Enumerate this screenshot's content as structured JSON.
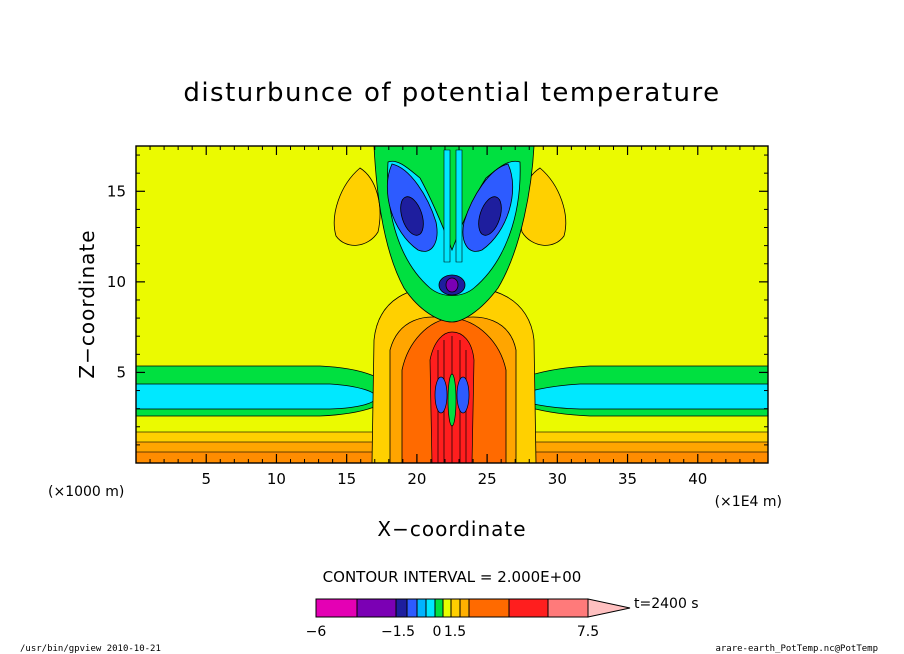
{
  "chart_data": {
    "type": "contour",
    "title": "disturbunce of potential temperature",
    "xlabel": "X−coordinate",
    "ylabel": "Z−coordinate",
    "x_unit": "(×1E4 m)",
    "y_unit": "(×1000 m)",
    "xlim": [
      0,
      45
    ],
    "ylim": [
      0,
      17.5
    ],
    "x_ticks": [
      5,
      10,
      15,
      20,
      25,
      30,
      35,
      40
    ],
    "y_ticks": [
      5,
      10,
      15
    ],
    "contour_interval_text": "CONTOUR INTERVAL = 2.000E+00",
    "colorbar": {
      "tick_labels": [
        "−6",
        "−1.5",
        "0",
        "1.5",
        "7.5"
      ],
      "colors": [
        "#e400b4",
        "#7b00b4",
        "#1e1e9e",
        "#2d5bff",
        "#00b4ff",
        "#00e8ff",
        "#00e040",
        "#e8ff00",
        "#ffd000",
        "#ffb000",
        "#ff6a00",
        "#ff1e1e",
        "#ff7a7a",
        "#ffc0c0"
      ]
    },
    "time_label": "t=2400 s",
    "colors": {
      "background": "#ebfa00",
      "green": "#00e040",
      "cyan": "#00e8ff",
      "blue": "#2d5bff",
      "navy": "#1e1e9e",
      "purple": "#7b00b4",
      "gold": "#ffd000",
      "amber": "#ffa500",
      "orange": "#ff6a00"
    }
  },
  "footer": {
    "left": "/usr/bin/gpview  2010-10-21",
    "right": "arare-earth_PotTemp.nc@PotTemp"
  }
}
